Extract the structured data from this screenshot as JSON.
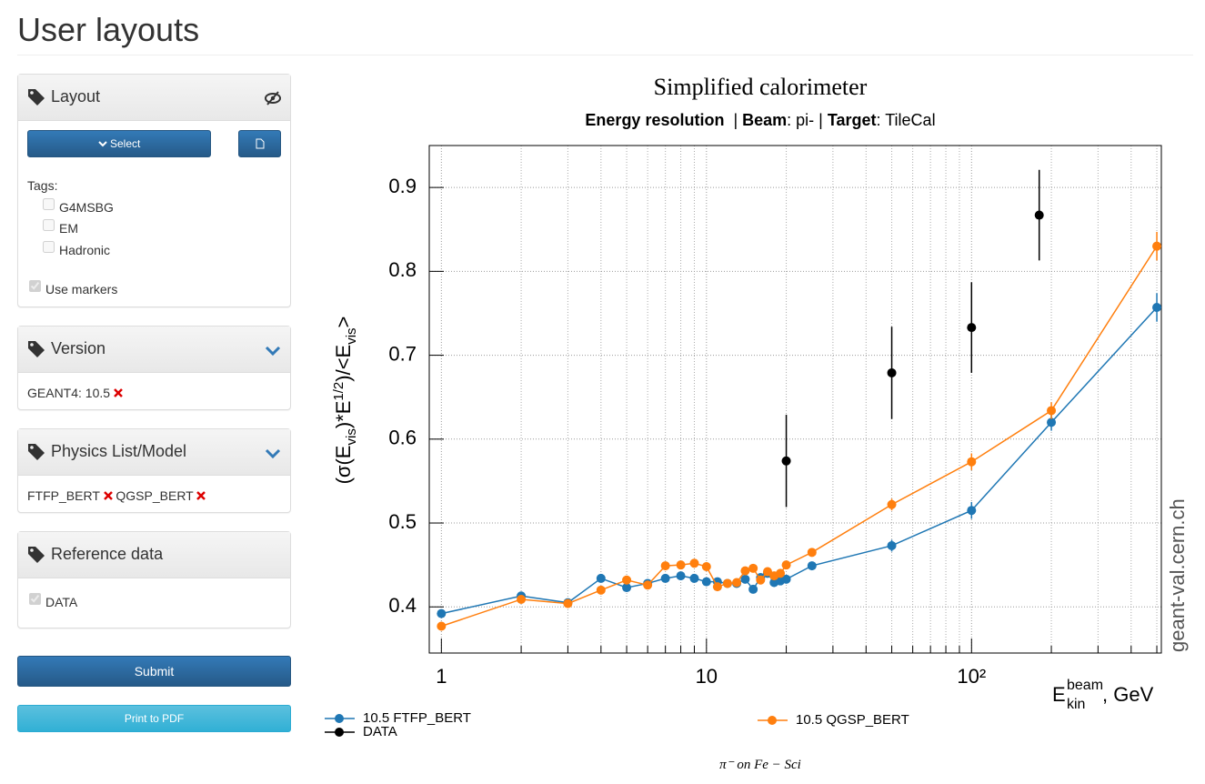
{
  "header": {
    "title": "User layouts"
  },
  "sidebar": {
    "layout": {
      "title": "Layout",
      "select": "Select",
      "tags_label": "Tags:",
      "tags": [
        {
          "label": "G4MSBG",
          "checked": false
        },
        {
          "label": "EM",
          "checked": false
        },
        {
          "label": "Hadronic",
          "checked": false
        }
      ],
      "use_markers": {
        "label": "Use markers",
        "checked": true
      }
    },
    "version": {
      "title": "Version",
      "items": [
        "GEANT4: 10.5"
      ]
    },
    "physics": {
      "title": "Physics List/Model",
      "items": [
        "FTFP_BERT",
        "QGSP_BERT"
      ]
    },
    "reference": {
      "title": "Reference data",
      "items": [
        {
          "label": "DATA",
          "checked": true
        }
      ]
    },
    "submit": "Submit",
    "print": "Print to PDF"
  },
  "chart_data": {
    "type": "line",
    "title": "Simplified calorimeter",
    "subtitle": [
      {
        "text": "Energy resolution",
        "bold": true
      },
      {
        "text": "  | "
      },
      {
        "text": "Beam",
        "bold": true
      },
      {
        "text": ": pi- | "
      },
      {
        "text": "Target",
        "bold": true
      },
      {
        "text": ": TileCal"
      }
    ],
    "ylabel": [
      "(σ(E",
      "vis",
      ")*E",
      "1/2",
      ")/<E",
      "vis",
      ">"
    ],
    "xlabel": [
      "E",
      "beam",
      "kin",
      ", GeV"
    ],
    "footer": "π⁻ on Fe − Sci",
    "watermark": "geant-val.cern.ch",
    "xscale": "log",
    "xlim": [
      0.9,
      520
    ],
    "xticks": [
      1,
      10,
      {
        "value": 100,
        "label": "10²"
      }
    ],
    "x_minor_grid": [
      2,
      3,
      4,
      5,
      6,
      7,
      8,
      9,
      20,
      30,
      40,
      50,
      60,
      70,
      80,
      90,
      200,
      300,
      400,
      500
    ],
    "ylim": [
      0.345,
      0.95
    ],
    "yticks": [
      0.4,
      0.5,
      0.6,
      0.7,
      0.8,
      0.9
    ],
    "grid": true,
    "series": [
      {
        "name": "10.5 FTFP_BERT",
        "color": "#1f77b4",
        "line": true,
        "x": [
          1,
          2,
          3,
          4,
          5,
          6,
          7,
          8,
          9,
          10,
          11,
          12,
          13,
          14,
          15,
          16,
          17,
          18,
          19,
          20,
          25,
          50,
          100,
          200,
          500
        ],
        "values": [
          0.392,
          0.413,
          0.405,
          0.434,
          0.423,
          0.428,
          0.434,
          0.437,
          0.434,
          0.43,
          0.43,
          0.428,
          0.428,
          0.433,
          0.421,
          0.435,
          0.44,
          0.429,
          0.431,
          0.433,
          0.449,
          0.473,
          0.515,
          0.62,
          0.757
        ],
        "errors": [
          0.005,
          0.005,
          0.005,
          0.005,
          0.005,
          0.005,
          0.005,
          0.005,
          0.005,
          0.005,
          0.005,
          0.005,
          0.005,
          0.005,
          0.005,
          0.005,
          0.005,
          0.005,
          0.005,
          0.005,
          0.005,
          0.007,
          0.01,
          0.01,
          0.017
        ]
      },
      {
        "name": "10.5 QGSP_BERT",
        "color": "#ff7f0e",
        "line": true,
        "x": [
          1,
          2,
          3,
          4,
          5,
          6,
          7,
          8,
          9,
          10,
          11,
          12,
          13,
          14,
          15,
          16,
          17,
          18,
          19,
          20,
          25,
          50,
          100,
          200,
          500
        ],
        "values": [
          0.377,
          0.409,
          0.404,
          0.42,
          0.432,
          0.426,
          0.449,
          0.45,
          0.452,
          0.448,
          0.424,
          0.428,
          0.429,
          0.443,
          0.446,
          0.432,
          0.442,
          0.437,
          0.44,
          0.45,
          0.465,
          0.522,
          0.573,
          0.634,
          0.83
        ],
        "errors": [
          0.005,
          0.005,
          0.005,
          0.005,
          0.005,
          0.005,
          0.005,
          0.005,
          0.005,
          0.005,
          0.005,
          0.005,
          0.005,
          0.005,
          0.005,
          0.005,
          0.005,
          0.005,
          0.005,
          0.005,
          0.005,
          0.007,
          0.01,
          0.01,
          0.017
        ]
      },
      {
        "name": "DATA",
        "color": "#000000",
        "line": false,
        "x": [
          20,
          50,
          100,
          180
        ],
        "values": [
          0.574,
          0.679,
          0.733,
          0.867
        ],
        "errors": [
          0.055,
          0.055,
          0.054,
          0.054
        ]
      }
    ]
  }
}
